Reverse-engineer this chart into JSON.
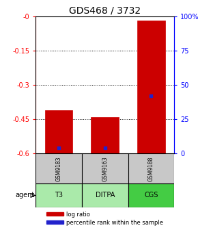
{
  "title": "GDS468 / 3732",
  "samples": [
    "GSM9183",
    "GSM9163",
    "GSM9188"
  ],
  "agents": [
    "T3",
    "DITPA",
    "CGS"
  ],
  "log_ratios": [
    -0.41,
    -0.44,
    -0.02
  ],
  "percentile_ranks": [
    4,
    4,
    42
  ],
  "bar_color": "#cc0000",
  "percentile_color": "#2222cc",
  "ylim_left": [
    -0.6,
    0.0
  ],
  "ylim_right": [
    0,
    100
  ],
  "yticks_left": [
    0.0,
    -0.15,
    -0.3,
    -0.45,
    -0.6
  ],
  "ytick_labels_left": [
    "-0",
    "-0.15",
    "-0.3",
    "-0.45",
    "-0.6"
  ],
  "yticks_right": [
    0,
    25,
    50,
    75,
    100
  ],
  "ytick_labels_right": [
    "0",
    "25",
    "50",
    "75",
    "100%"
  ],
  "bar_width": 0.6,
  "sample_bg_color": "#c8c8c8",
  "agent_bg_color": "#aaeaaa",
  "agent_bg_color_CGS": "#44cc44",
  "legend_log_label": "log ratio",
  "legend_pct_label": "percentile rank within the sample",
  "agent_label": "agent",
  "background_color": "#ffffff",
  "title_fontsize": 10,
  "tick_fontsize": 7
}
